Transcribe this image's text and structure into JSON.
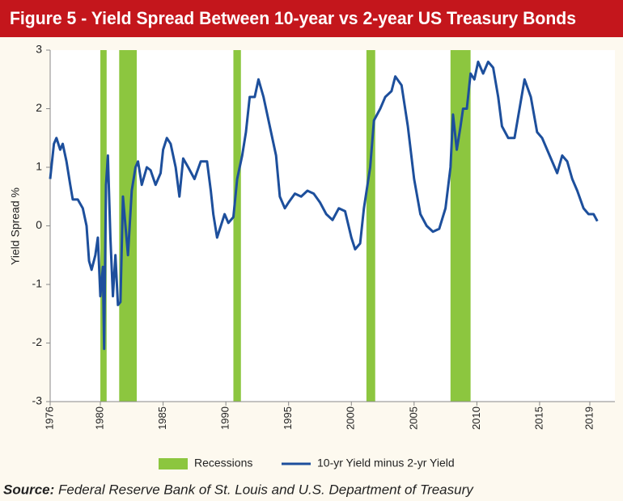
{
  "chart_data": {
    "type": "line",
    "title": "Figure 5 - Yield Spread Between 10-year vs 2-year US Treasury Bonds",
    "y_label": "Yield Spread %",
    "source_label": "Source:",
    "source": "Federal Reserve Bank of St. Louis and U.S. Department of Treasury",
    "xlim": [
      1976,
      2021
    ],
    "xticks": [
      1976,
      1980,
      1985,
      1990,
      1995,
      2000,
      2005,
      2010,
      2015,
      2019
    ],
    "ylim": [
      -3,
      3
    ],
    "yticks": [
      -3,
      -2,
      -1,
      0,
      1,
      2,
      3
    ],
    "bands": {
      "name": "Recessions",
      "color": "#8cc63f",
      "ranges": [
        [
          1980.0,
          1980.5
        ],
        [
          1981.5,
          1982.9
        ],
        [
          1990.6,
          1991.2
        ],
        [
          2001.2,
          2001.9
        ],
        [
          2007.9,
          2009.5
        ]
      ]
    },
    "series": [
      {
        "name": "10-yr Yield minus 2-yr Yield",
        "color": "#1d4f9c",
        "x": [
          1976.0,
          1976.3,
          1976.5,
          1976.8,
          1977.0,
          1977.3,
          1977.6,
          1977.8,
          1978.2,
          1978.6,
          1978.9,
          1979.1,
          1979.3,
          1979.6,
          1979.8,
          1980.0,
          1980.2,
          1980.3,
          1980.45,
          1980.6,
          1980.8,
          1981.0,
          1981.2,
          1981.4,
          1981.6,
          1981.8,
          1982.0,
          1982.2,
          1982.5,
          1982.8,
          1983.0,
          1983.3,
          1983.7,
          1984.0,
          1984.4,
          1984.8,
          1985.0,
          1985.3,
          1985.6,
          1986.0,
          1986.3,
          1986.6,
          1987.0,
          1987.5,
          1988.0,
          1988.5,
          1988.8,
          1989.0,
          1989.3,
          1989.6,
          1989.9,
          1990.2,
          1990.6,
          1990.9,
          1991.3,
          1991.6,
          1991.9,
          1992.3,
          1992.6,
          1993.0,
          1993.5,
          1994.0,
          1994.3,
          1994.7,
          1995.0,
          1995.5,
          1996.0,
          1996.5,
          1997.0,
          1997.5,
          1998.0,
          1998.5,
          1999.0,
          1999.5,
          2000.0,
          2000.3,
          2000.7,
          2001.0,
          2001.5,
          2001.8,
          2002.3,
          2002.7,
          2003.2,
          2003.5,
          2004.0,
          2004.5,
          2005.0,
          2005.5,
          2006.0,
          2006.5,
          2007.0,
          2007.5,
          2007.9,
          2008.1,
          2008.4,
          2008.7,
          2008.9,
          2009.2,
          2009.5,
          2009.8,
          2010.1,
          2010.5,
          2010.9,
          2011.3,
          2011.7,
          2012.0,
          2012.5,
          2013.0,
          2013.4,
          2013.8,
          2014.3,
          2014.8,
          2015.2,
          2015.6,
          2016.0,
          2016.4,
          2016.8,
          2017.2,
          2017.6,
          2018.0,
          2018.5,
          2018.9,
          2019.3,
          2019.6
        ],
        "values": [
          0.8,
          1.4,
          1.5,
          1.3,
          1.4,
          1.1,
          0.7,
          0.45,
          0.45,
          0.3,
          0.0,
          -0.6,
          -0.75,
          -0.5,
          -0.2,
          -1.2,
          -0.7,
          -2.1,
          0.7,
          1.2,
          -0.2,
          -1.2,
          -0.5,
          -1.35,
          -1.3,
          0.5,
          0.0,
          -0.5,
          0.6,
          1.0,
          1.1,
          0.7,
          1.0,
          0.95,
          0.7,
          0.9,
          1.3,
          1.5,
          1.4,
          1.0,
          0.5,
          1.15,
          1.0,
          0.8,
          1.1,
          1.1,
          0.6,
          0.2,
          -0.2,
          0.0,
          0.2,
          0.05,
          0.15,
          0.8,
          1.2,
          1.6,
          2.2,
          2.2,
          2.5,
          2.2,
          1.7,
          1.2,
          0.5,
          0.3,
          0.4,
          0.55,
          0.5,
          0.6,
          0.55,
          0.4,
          0.2,
          0.1,
          0.3,
          0.25,
          -0.2,
          -0.4,
          -0.3,
          0.3,
          1.0,
          1.8,
          2.0,
          2.2,
          2.3,
          2.55,
          2.4,
          1.7,
          0.8,
          0.2,
          0.0,
          -0.1,
          -0.05,
          0.3,
          1.0,
          1.9,
          1.3,
          1.7,
          2.0,
          2.0,
          2.6,
          2.5,
          2.8,
          2.6,
          2.8,
          2.7,
          2.2,
          1.7,
          1.5,
          1.5,
          2.0,
          2.5,
          2.2,
          1.6,
          1.5,
          1.3,
          1.1,
          0.9,
          1.2,
          1.1,
          0.8,
          0.6,
          0.3,
          0.2,
          0.2,
          0.08
        ]
      }
    ]
  }
}
